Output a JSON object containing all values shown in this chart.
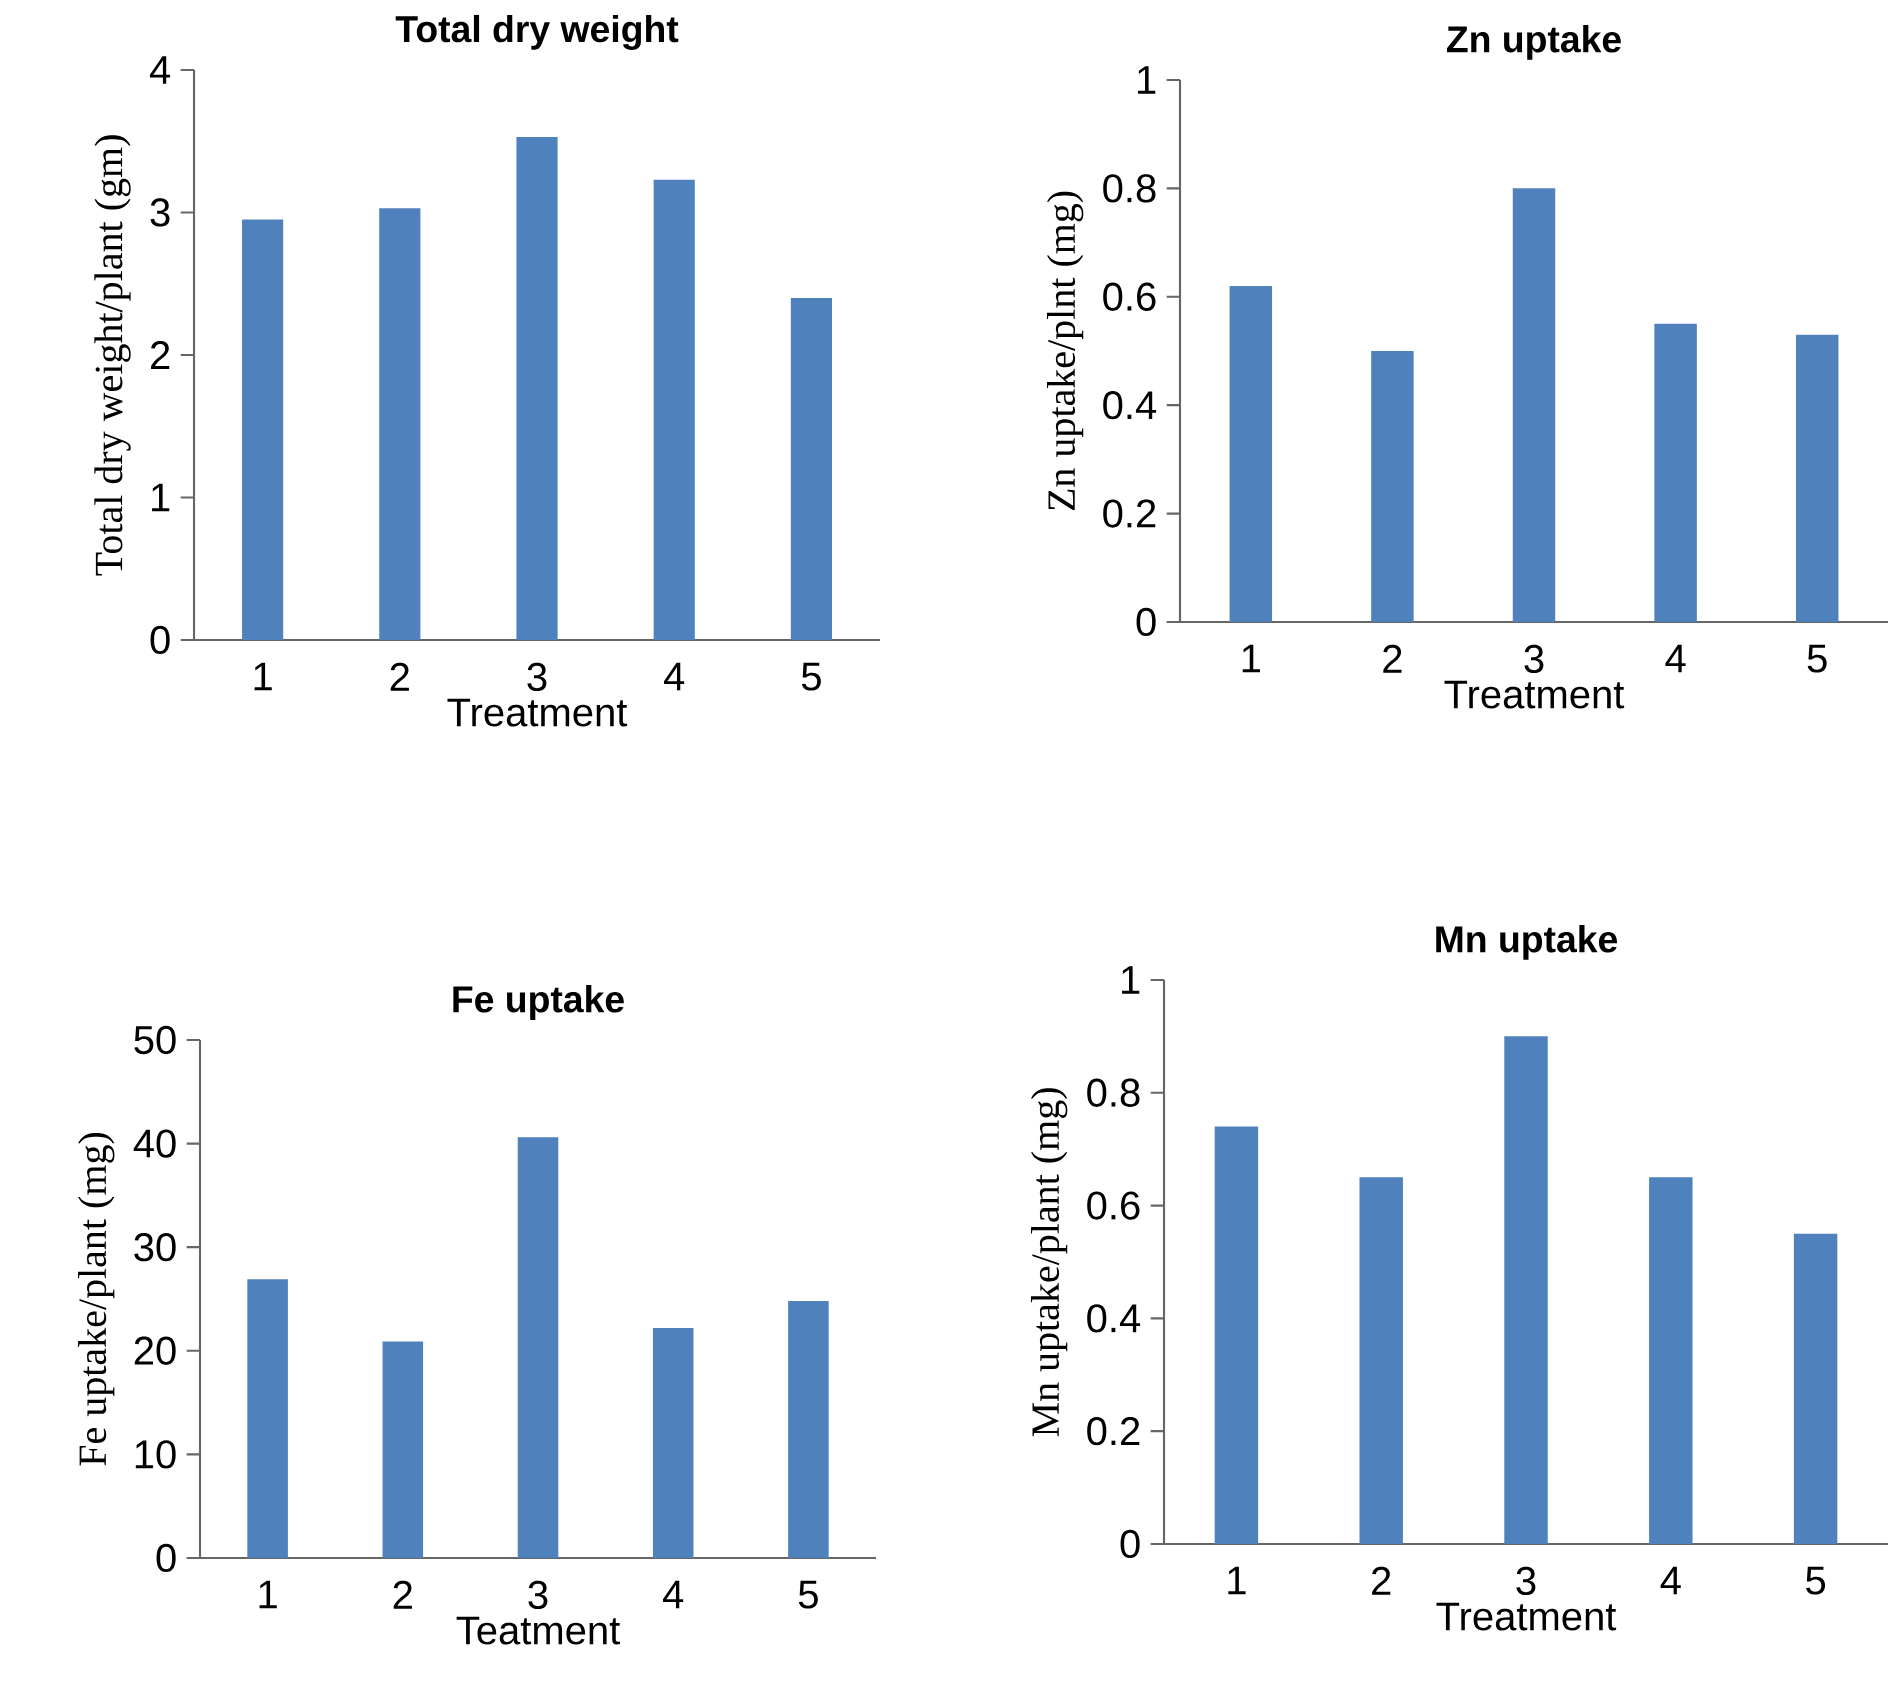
{
  "chart_data": [
    {
      "type": "bar",
      "title": "Total dry weight",
      "xlabel": "Treatment",
      "ylabel": "Total dry weight/plant (gm)",
      "categories": [
        "1",
        "2",
        "3",
        "4",
        "5"
      ],
      "values": [
        2.95,
        3.03,
        3.53,
        3.23,
        2.4
      ],
      "color": "#4f81bd",
      "ylim": [
        0,
        4
      ],
      "yticks": [
        0,
        1,
        2,
        3,
        4
      ]
    },
    {
      "type": "bar",
      "title": "Zn uptake",
      "xlabel": "Treatment",
      "ylabel": "Zn uptake/plnt (mg)",
      "categories": [
        "1",
        "2",
        "3",
        "4",
        "5"
      ],
      "values": [
        0.62,
        0.5,
        0.8,
        0.55,
        0.53
      ],
      "color": "#4f81bd",
      "ylim": [
        0,
        1
      ],
      "yticks": [
        0,
        0.2,
        0.4,
        0.6,
        0.8,
        1
      ]
    },
    {
      "type": "bar",
      "title": "Fe uptake",
      "xlabel": "Teatment",
      "ylabel": "Fe uptake/plant (mg)",
      "categories": [
        "1",
        "2",
        "3",
        "4",
        "5"
      ],
      "values": [
        26.9,
        20.9,
        40.6,
        22.2,
        24.8
      ],
      "color": "#4f81bd",
      "ylim": [
        0,
        50
      ],
      "yticks": [
        0,
        10,
        20,
        30,
        40,
        50
      ]
    },
    {
      "type": "bar",
      "title": "Mn uptake",
      "xlabel": "Treatment",
      "ylabel": "Mn uptake/plant (mg)",
      "categories": [
        "1",
        "2",
        "3",
        "4",
        "5"
      ],
      "values": [
        0.74,
        0.65,
        0.9,
        0.65,
        0.55
      ],
      "color": "#4f81bd",
      "ylim": [
        0,
        1
      ],
      "yticks": [
        0,
        0.2,
        0.4,
        0.6,
        0.8,
        1
      ]
    }
  ]
}
